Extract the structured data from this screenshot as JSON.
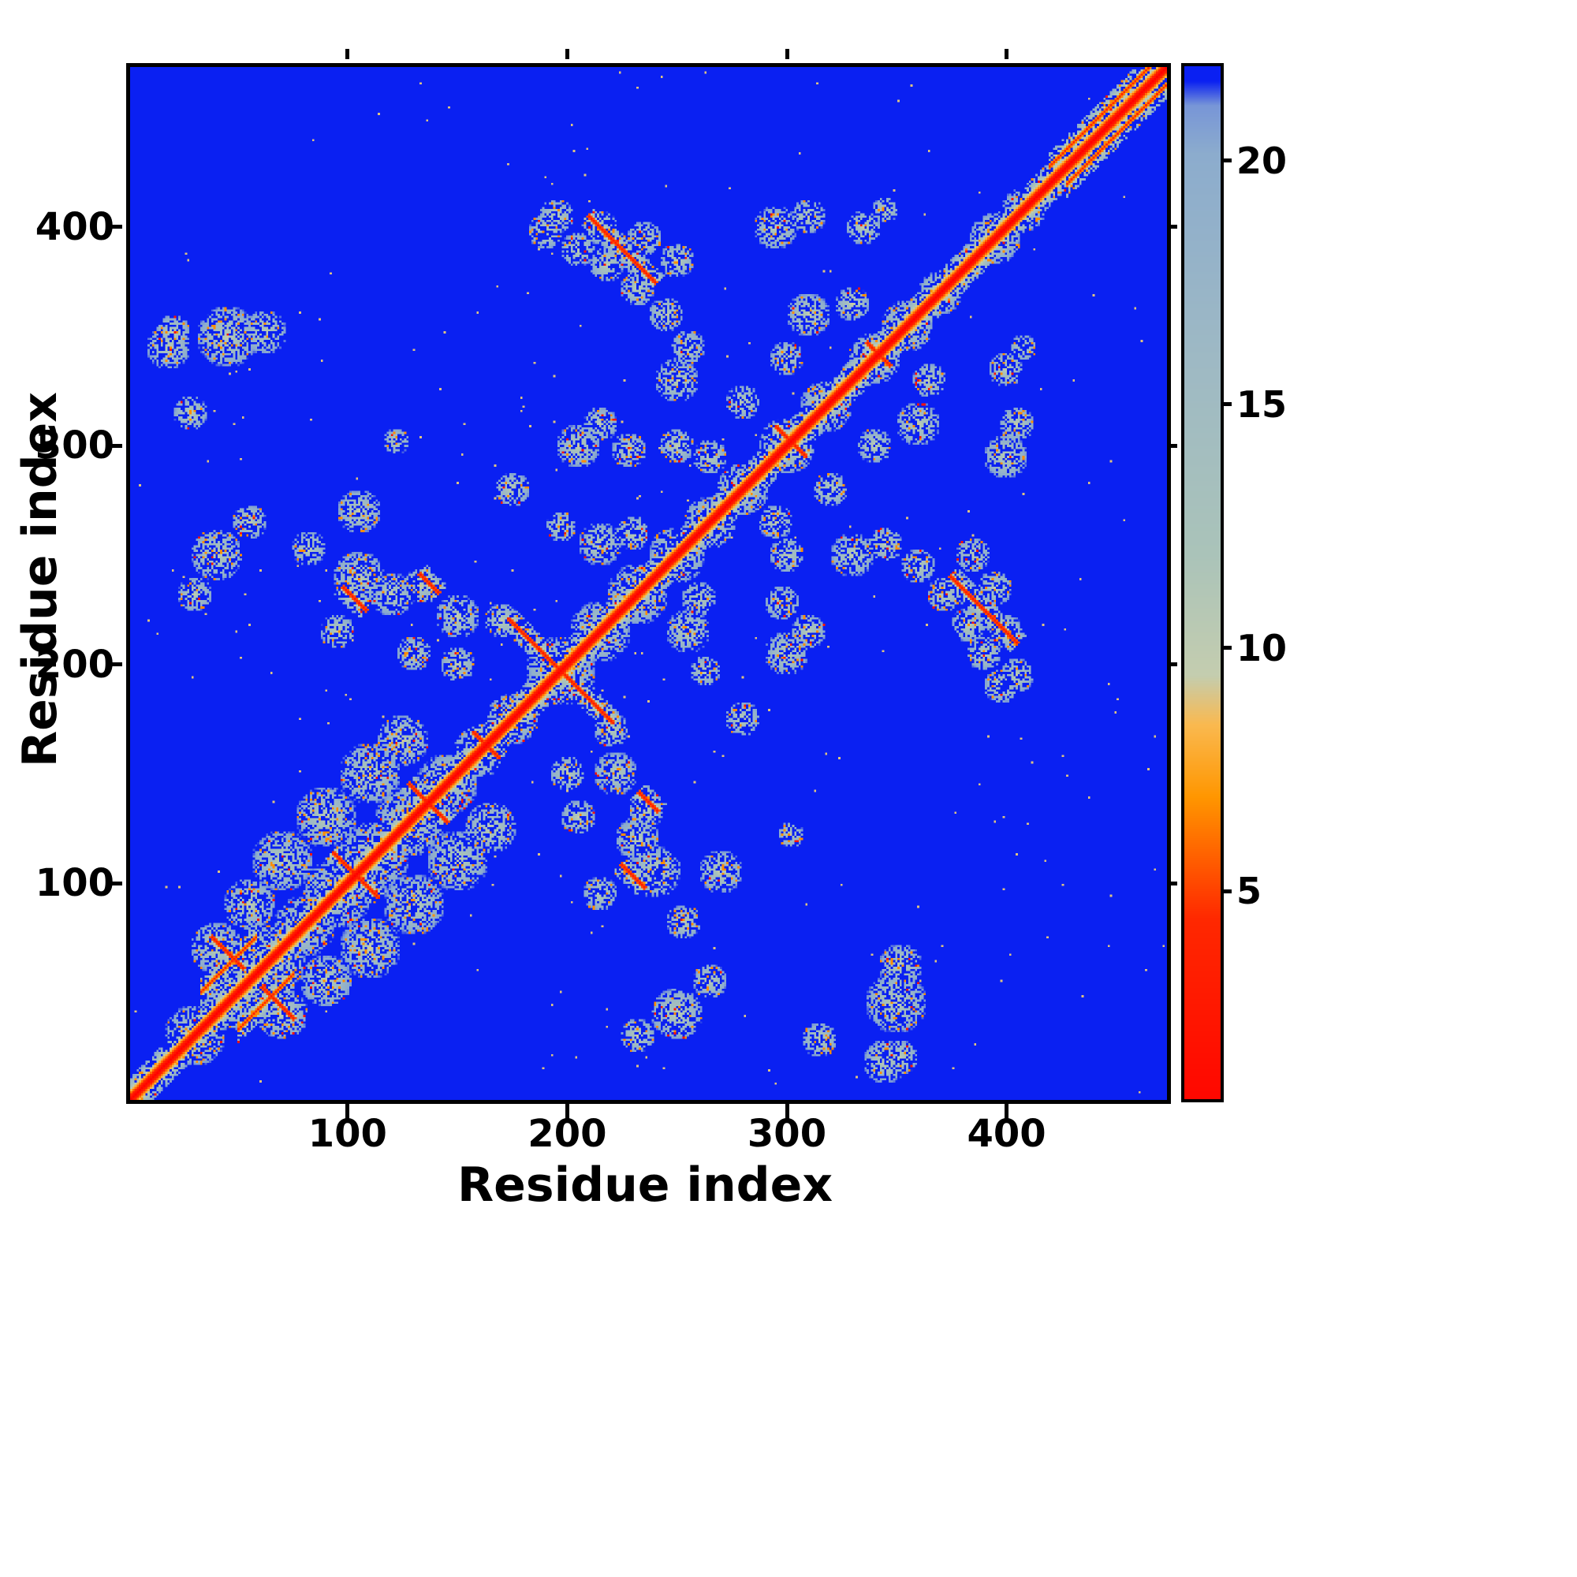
{
  "figure": {
    "background": "#ffffff",
    "frame_color": "#000000"
  },
  "chart_data": {
    "type": "heatmap",
    "title": "",
    "xlabel": "Residue index",
    "ylabel": "Residue index",
    "n_residues": 473,
    "x_range": [
      1,
      473
    ],
    "y_range": [
      1,
      473
    ],
    "x_ticks": [
      100,
      200,
      300,
      400
    ],
    "y_ticks": [
      100,
      200,
      300,
      400
    ],
    "grid": false,
    "background_value_color": "#0a20f0",
    "colorbar": {
      "position": "right",
      "ticks": [
        5,
        10,
        15,
        20
      ],
      "vmin": 0.8,
      "vmax": 22.0
    },
    "colormap_stops": [
      {
        "v": 0.0,
        "c": [
          255,
          0,
          0
        ]
      },
      {
        "v": 4.5,
        "c": [
          255,
          40,
          0
        ]
      },
      {
        "v": 7.0,
        "c": [
          255,
          150,
          0
        ]
      },
      {
        "v": 8.5,
        "c": [
          250,
          185,
          80
        ]
      },
      {
        "v": 9.5,
        "c": [
          196,
          205,
          175
        ]
      },
      {
        "v": 12.0,
        "c": [
          170,
          195,
          185
        ]
      },
      {
        "v": 16.0,
        "c": [
          158,
          185,
          196
        ]
      },
      {
        "v": 20.2,
        "c": [
          140,
          172,
          205
        ]
      },
      {
        "v": 21.2,
        "c": [
          120,
          150,
          215
        ]
      },
      {
        "v": 21.7,
        "c": [
          10,
          32,
          242
        ]
      },
      {
        "v": 25.0,
        "c": [
          10,
          32,
          242
        ]
      }
    ],
    "diagonal": {
      "core_value": 0,
      "slope_per_residue": 2.05,
      "halo_half_width_residues": 10
    },
    "contact_clusters": [
      [
        30,
        30,
        14
      ],
      [
        48,
        48,
        16
      ],
      [
        65,
        65,
        16
      ],
      [
        80,
        80,
        14
      ],
      [
        95,
        95,
        16
      ],
      [
        112,
        112,
        16
      ],
      [
        128,
        128,
        16
      ],
      [
        145,
        145,
        14
      ],
      [
        160,
        160,
        12
      ],
      [
        175,
        175,
        12
      ],
      [
        197,
        197,
        16
      ],
      [
        215,
        215,
        14
      ],
      [
        232,
        232,
        14
      ],
      [
        250,
        250,
        13
      ],
      [
        265,
        265,
        12
      ],
      [
        280,
        280,
        12
      ],
      [
        300,
        300,
        13
      ],
      [
        318,
        318,
        12
      ],
      [
        340,
        340,
        12
      ],
      [
        355,
        355,
        12
      ],
      [
        370,
        370,
        10
      ],
      [
        395,
        395,
        12
      ],
      [
        408,
        408,
        10
      ],
      [
        45,
        350,
        14
      ],
      [
        20,
        352,
        8
      ],
      [
        315,
        28,
        8
      ],
      [
        345,
        18,
        10
      ],
      [
        352,
        62,
        10
      ],
      [
        270,
        105,
        10
      ],
      [
        253,
        82,
        8
      ],
      [
        40,
        250,
        12
      ],
      [
        30,
        232,
        8
      ],
      [
        55,
        265,
        8
      ],
      [
        105,
        240,
        12
      ],
      [
        120,
        232,
        10
      ],
      [
        133,
        236,
        8
      ],
      [
        150,
        222,
        10
      ],
      [
        95,
        215,
        8
      ],
      [
        40,
        70,
        12
      ],
      [
        55,
        90,
        12
      ],
      [
        70,
        110,
        14
      ],
      [
        90,
        130,
        14
      ],
      [
        110,
        150,
        14
      ],
      [
        125,
        165,
        12
      ],
      [
        130,
        205,
        8
      ],
      [
        150,
        200,
        8
      ],
      [
        170,
        220,
        8
      ],
      [
        215,
        255,
        10
      ],
      [
        230,
        260,
        8
      ],
      [
        197,
        263,
        7
      ],
      [
        205,
        300,
        10
      ],
      [
        215,
        310,
        8
      ],
      [
        228,
        298,
        8
      ],
      [
        175,
        280,
        8
      ],
      [
        122,
        302,
        6
      ],
      [
        250,
        330,
        10
      ],
      [
        255,
        345,
        8
      ],
      [
        245,
        360,
        8
      ],
      [
        232,
        372,
        8
      ],
      [
        190,
        398,
        8
      ],
      [
        205,
        390,
        8
      ],
      [
        218,
        383,
        8
      ],
      [
        250,
        300,
        8
      ],
      [
        265,
        295,
        8
      ],
      [
        280,
        320,
        8
      ],
      [
        300,
        340,
        8
      ],
      [
        310,
        360,
        10
      ],
      [
        330,
        365,
        8
      ],
      [
        295,
        400,
        10
      ],
      [
        310,
        405,
        8
      ],
      [
        335,
        400,
        8
      ],
      [
        345,
        408,
        6
      ],
      [
        385,
        250,
        8
      ],
      [
        395,
        235,
        8
      ],
      [
        400,
        215,
        8
      ],
      [
        405,
        195,
        8
      ]
    ],
    "antidiagonal_streaks": [
      [
        100,
        107,
        10
      ],
      [
        133,
        140,
        8
      ],
      [
        197,
        197,
        34
      ],
      [
        163,
        163,
        9
      ],
      [
        45,
        68,
        11
      ],
      [
        237,
        137,
        7
      ],
      [
        230,
        103,
        8
      ],
      [
        390,
        225,
        22
      ],
      [
        302,
        302,
        10
      ],
      [
        342,
        342,
        8
      ]
    ],
    "parallel_streaks": [
      [
        420,
        468,
        8
      ],
      [
        50,
        75,
        -17
      ]
    ]
  }
}
